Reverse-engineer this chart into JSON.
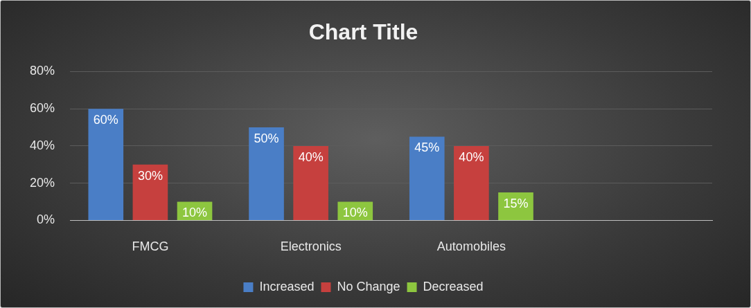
{
  "chart_data": {
    "type": "bar",
    "title": "Chart Title",
    "categories": [
      "FMCG",
      "Electronics",
      "Automobiles",
      null
    ],
    "series": [
      {
        "name": "Increased",
        "color": "#4a7ec6",
        "values": [
          60,
          50,
          45,
          null
        ],
        "value_labels": [
          "60%",
          "50%",
          "45%",
          null
        ]
      },
      {
        "name": "No Change",
        "color": "#c6403e",
        "values": [
          30,
          40,
          40,
          null
        ],
        "value_labels": [
          "30%",
          "40%",
          "40%",
          null
        ]
      },
      {
        "name": "Decreased",
        "color": "#8dc63f",
        "values": [
          10,
          10,
          15,
          null
        ],
        "value_labels": [
          "10%",
          "10%",
          "15%",
          null
        ]
      }
    ],
    "ylim": [
      0,
      80
    ],
    "yticks": [
      {
        "value": 0,
        "label": "0%"
      },
      {
        "value": 20,
        "label": "20%"
      },
      {
        "value": 40,
        "label": "40%"
      },
      {
        "value": 60,
        "label": "60%"
      },
      {
        "value": 80,
        "label": "80%"
      }
    ],
    "grid": "y",
    "legend": "bottom"
  }
}
